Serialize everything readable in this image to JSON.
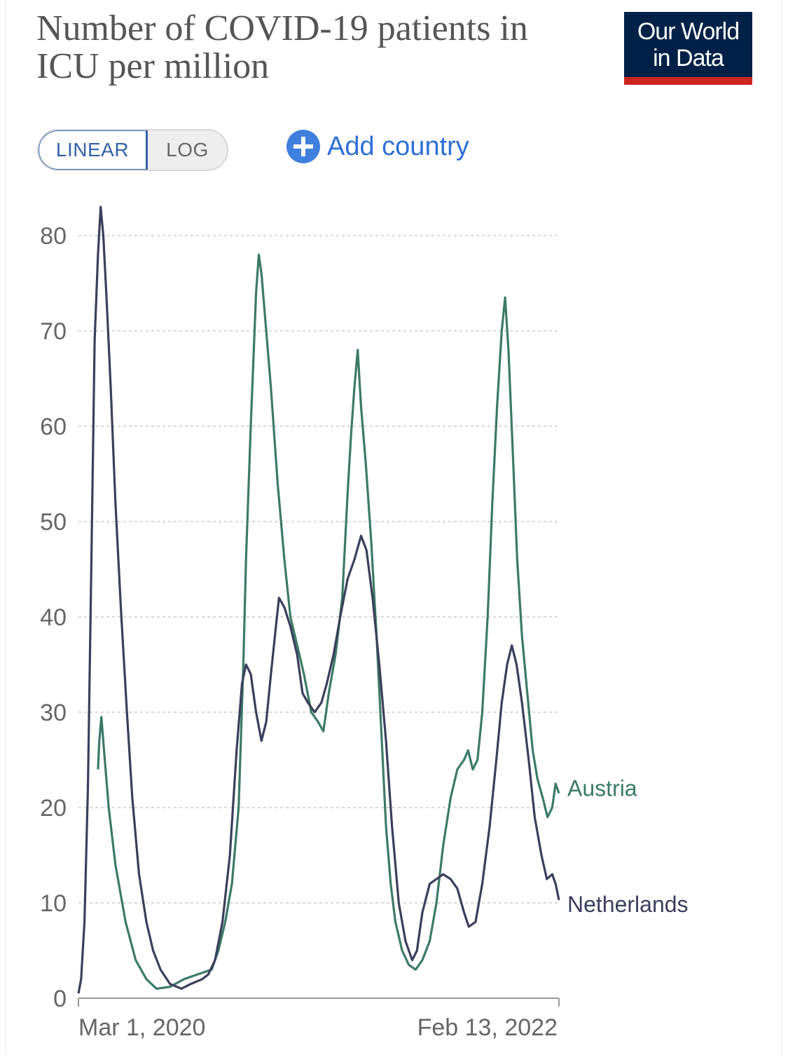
{
  "header": {
    "title": "Number of COVID-19 patients in ICU per million",
    "logo_line1": "Our World",
    "logo_line2": "in Data"
  },
  "controls": {
    "linear_label": "LINEAR",
    "log_label": "LOG",
    "add_country_label": "Add country"
  },
  "colors": {
    "austria": "#3c7a68",
    "netherlands": "#3a3f5c",
    "grid": "#cccccc",
    "axis_text": "#666666"
  },
  "chart_data": {
    "type": "line",
    "title": "Number of COVID-19 patients in ICU per million",
    "xlabel": "",
    "ylabel": "",
    "x_tick_labels": [
      "Mar 1, 2020",
      "Feb 13, 2022"
    ],
    "x_range": [
      "2020-03-01",
      "2022-02-13"
    ],
    "y_ticks": [
      0,
      10,
      20,
      30,
      40,
      50,
      60,
      70,
      80
    ],
    "ylim": [
      0,
      83
    ],
    "grid": "horizontal dashed",
    "legend": "right, labels at line ends",
    "series": [
      {
        "name": "Austria",
        "color": "#3c7a68",
        "points": [
          [
            "2020-03-30",
            24
          ],
          [
            "2020-04-01",
            27
          ],
          [
            "2020-04-04",
            29.5
          ],
          [
            "2020-04-08",
            26
          ],
          [
            "2020-04-15",
            20
          ],
          [
            "2020-04-25",
            14
          ],
          [
            "2020-05-10",
            8
          ],
          [
            "2020-05-25",
            4
          ],
          [
            "2020-06-10",
            2
          ],
          [
            "2020-06-25",
            1
          ],
          [
            "2020-07-15",
            1.2
          ],
          [
            "2020-08-05",
            2
          ],
          [
            "2020-08-25",
            2.5
          ],
          [
            "2020-09-15",
            3
          ],
          [
            "2020-09-25",
            5
          ],
          [
            "2020-10-05",
            8
          ],
          [
            "2020-10-15",
            12
          ],
          [
            "2020-10-25",
            20
          ],
          [
            "2020-11-01",
            35
          ],
          [
            "2020-11-05",
            46
          ],
          [
            "2020-11-12",
            60
          ],
          [
            "2020-11-20",
            74
          ],
          [
            "2020-11-24",
            78
          ],
          [
            "2020-11-28",
            76
          ],
          [
            "2020-12-05",
            70
          ],
          [
            "2020-12-12",
            64
          ],
          [
            "2020-12-22",
            54
          ],
          [
            "2021-01-01",
            46
          ],
          [
            "2021-01-10",
            40
          ],
          [
            "2021-01-20",
            37
          ],
          [
            "2021-01-30",
            34
          ],
          [
            "2021-02-10",
            30
          ],
          [
            "2021-02-20",
            29
          ],
          [
            "2021-02-28",
            28
          ],
          [
            "2021-03-08",
            32
          ],
          [
            "2021-03-18",
            36
          ],
          [
            "2021-03-28",
            42
          ],
          [
            "2021-04-05",
            53
          ],
          [
            "2021-04-10",
            59
          ],
          [
            "2021-04-15",
            64
          ],
          [
            "2021-04-20",
            68
          ],
          [
            "2021-04-25",
            62
          ],
          [
            "2021-05-02",
            56
          ],
          [
            "2021-05-10",
            48
          ],
          [
            "2021-05-18",
            38
          ],
          [
            "2021-05-25",
            28
          ],
          [
            "2021-06-01",
            18
          ],
          [
            "2021-06-08",
            12
          ],
          [
            "2021-06-15",
            8
          ],
          [
            "2021-06-25",
            5
          ],
          [
            "2021-07-05",
            3.5
          ],
          [
            "2021-07-15",
            3
          ],
          [
            "2021-07-25",
            4
          ],
          [
            "2021-08-05",
            6
          ],
          [
            "2021-08-15",
            10
          ],
          [
            "2021-08-25",
            16
          ],
          [
            "2021-09-05",
            21
          ],
          [
            "2021-09-15",
            24
          ],
          [
            "2021-09-25",
            25
          ],
          [
            "2021-10-01",
            26
          ],
          [
            "2021-10-08",
            24
          ],
          [
            "2021-10-15",
            25
          ],
          [
            "2021-10-22",
            30
          ],
          [
            "2021-10-30",
            40
          ],
          [
            "2021-11-06",
            52
          ],
          [
            "2021-11-13",
            62
          ],
          [
            "2021-11-20",
            70
          ],
          [
            "2021-11-25",
            73.5
          ],
          [
            "2021-11-30",
            68
          ],
          [
            "2021-12-06",
            58
          ],
          [
            "2021-12-13",
            46
          ],
          [
            "2021-12-20",
            38
          ],
          [
            "2021-12-28",
            32
          ],
          [
            "2022-01-05",
            26
          ],
          [
            "2022-01-12",
            23
          ],
          [
            "2022-01-20",
            21
          ],
          [
            "2022-01-27",
            19
          ],
          [
            "2022-02-03",
            20
          ],
          [
            "2022-02-08",
            22.5
          ],
          [
            "2022-02-13",
            21.5
          ]
        ]
      },
      {
        "name": "Netherlands",
        "color": "#3a3f5c",
        "points": [
          [
            "2020-03-01",
            0.5
          ],
          [
            "2020-03-05",
            2
          ],
          [
            "2020-03-10",
            8
          ],
          [
            "2020-03-15",
            22
          ],
          [
            "2020-03-20",
            45
          ],
          [
            "2020-03-25",
            69
          ],
          [
            "2020-03-30",
            78
          ],
          [
            "2020-04-03",
            83
          ],
          [
            "2020-04-07",
            80
          ],
          [
            "2020-04-12",
            73
          ],
          [
            "2020-04-18",
            64
          ],
          [
            "2020-04-25",
            52
          ],
          [
            "2020-05-03",
            41
          ],
          [
            "2020-05-12",
            30
          ],
          [
            "2020-05-20",
            21
          ],
          [
            "2020-05-30",
            13
          ],
          [
            "2020-06-10",
            8
          ],
          [
            "2020-06-20",
            5
          ],
          [
            "2020-07-01",
            3
          ],
          [
            "2020-07-15",
            1.5
          ],
          [
            "2020-08-01",
            1
          ],
          [
            "2020-08-15",
            1.5
          ],
          [
            "2020-09-01",
            2
          ],
          [
            "2020-09-10",
            2.5
          ],
          [
            "2020-09-20",
            4
          ],
          [
            "2020-10-01",
            8
          ],
          [
            "2020-10-12",
            15
          ],
          [
            "2020-10-22",
            26
          ],
          [
            "2020-10-30",
            33
          ],
          [
            "2020-11-05",
            35
          ],
          [
            "2020-11-12",
            34
          ],
          [
            "2020-11-20",
            30
          ],
          [
            "2020-11-28",
            27
          ],
          [
            "2020-12-05",
            29
          ],
          [
            "2020-12-12",
            34
          ],
          [
            "2020-12-18",
            38
          ],
          [
            "2020-12-24",
            42
          ],
          [
            "2021-01-01",
            41
          ],
          [
            "2021-01-10",
            39
          ],
          [
            "2021-01-20",
            36
          ],
          [
            "2021-01-28",
            32
          ],
          [
            "2021-02-05",
            31
          ],
          [
            "2021-02-15",
            30
          ],
          [
            "2021-02-25",
            31
          ],
          [
            "2021-03-05",
            33
          ],
          [
            "2021-03-15",
            36
          ],
          [
            "2021-03-25",
            40
          ],
          [
            "2021-04-05",
            44
          ],
          [
            "2021-04-15",
            46
          ],
          [
            "2021-04-25",
            48.5
          ],
          [
            "2021-05-03",
            47
          ],
          [
            "2021-05-12",
            42
          ],
          [
            "2021-05-22",
            35
          ],
          [
            "2021-06-01",
            27
          ],
          [
            "2021-06-10",
            18
          ],
          [
            "2021-06-20",
            10
          ],
          [
            "2021-06-30",
            6
          ],
          [
            "2021-07-10",
            4
          ],
          [
            "2021-07-17",
            5
          ],
          [
            "2021-07-25",
            9
          ],
          [
            "2021-08-05",
            12
          ],
          [
            "2021-08-15",
            12.5
          ],
          [
            "2021-08-25",
            13
          ],
          [
            "2021-09-05",
            12.5
          ],
          [
            "2021-09-15",
            11.5
          ],
          [
            "2021-09-25",
            9
          ],
          [
            "2021-10-02",
            7.5
          ],
          [
            "2021-10-12",
            8
          ],
          [
            "2021-10-22",
            12
          ],
          [
            "2021-11-02",
            18
          ],
          [
            "2021-11-12",
            25
          ],
          [
            "2021-11-20",
            31
          ],
          [
            "2021-11-28",
            35
          ],
          [
            "2021-12-05",
            37
          ],
          [
            "2021-12-12",
            35
          ],
          [
            "2021-12-20",
            31
          ],
          [
            "2021-12-30",
            25
          ],
          [
            "2022-01-08",
            19
          ],
          [
            "2022-01-18",
            15
          ],
          [
            "2022-01-26",
            12.5
          ],
          [
            "2022-02-03",
            13
          ],
          [
            "2022-02-08",
            12
          ],
          [
            "2022-02-13",
            10.3
          ]
        ]
      }
    ]
  }
}
